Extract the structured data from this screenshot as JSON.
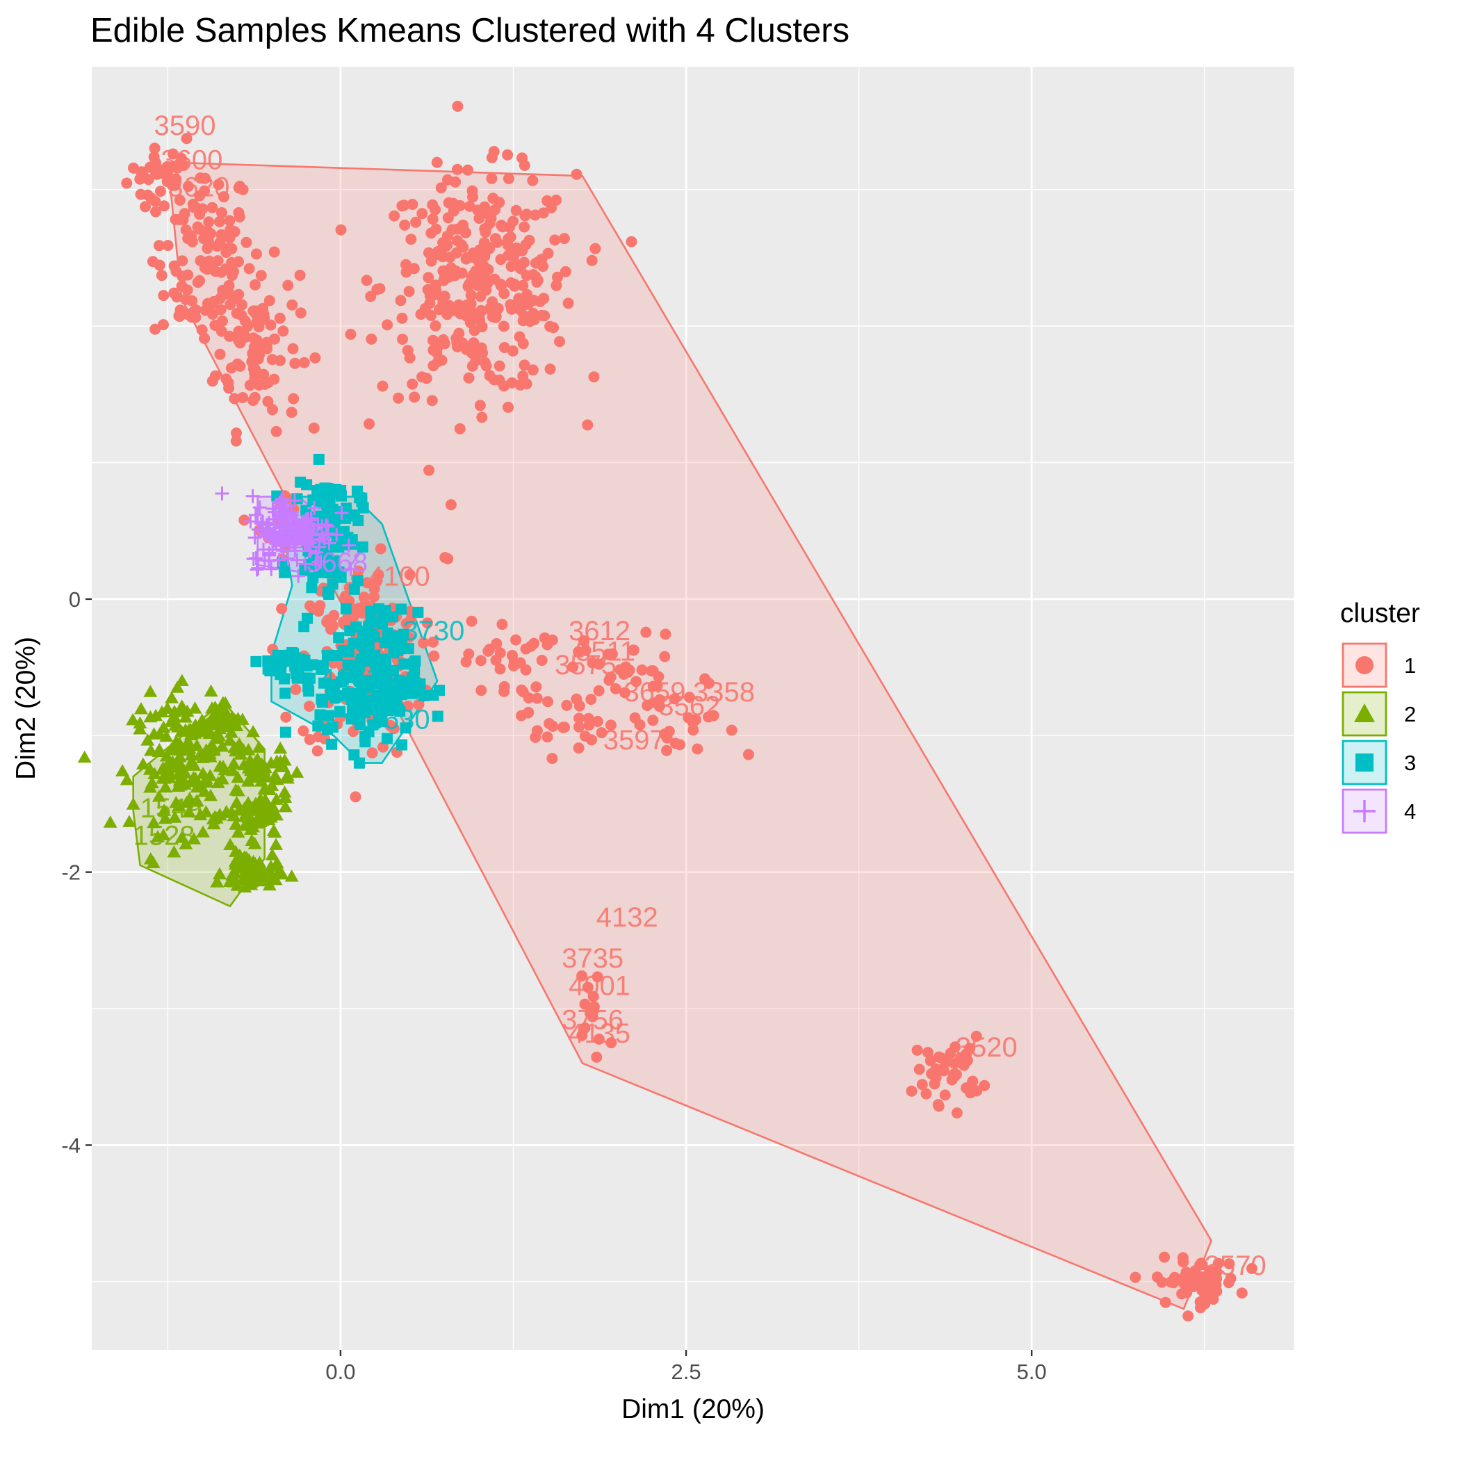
{
  "chart_data": {
    "type": "scatter",
    "title": "Edible Samples Kmeans Clustered with 4 Clusters",
    "xlabel": "Dim1 (20%)",
    "ylabel": "Dim2 (20%)",
    "xlim": [
      -1.8,
      6.9
    ],
    "ylim": [
      -5.5,
      3.9
    ],
    "x_ticks": [
      0.0,
      2.5,
      5.0
    ],
    "x_tick_labels": [
      "0.0",
      "2.5",
      "5.0"
    ],
    "y_ticks": [
      0,
      -2,
      -4
    ],
    "y_tick_labels": [
      "0",
      "-2",
      "-4"
    ],
    "grid": true,
    "panel_background": "#ebebeb",
    "legend": {
      "title": "cluster",
      "position": "right",
      "entries": [
        {
          "label": "1",
          "color": "#F8766D",
          "shape": "circle"
        },
        {
          "label": "2",
          "color": "#7CAE00",
          "shape": "triangle"
        },
        {
          "label": "3",
          "color": "#00BFC4",
          "shape": "square"
        },
        {
          "label": "4",
          "color": "#C77CFF",
          "shape": "cross"
        }
      ]
    },
    "hulls": [
      {
        "cluster": "1",
        "points": [
          [
            -1.25,
            3.2
          ],
          [
            1.75,
            3.1
          ],
          [
            6.3,
            -4.7
          ],
          [
            6.1,
            -5.2
          ],
          [
            1.75,
            -3.4
          ],
          [
            -1.15,
            2.2
          ]
        ]
      },
      {
        "cluster": "2",
        "points": [
          [
            -1.5,
            -1.3
          ],
          [
            -0.85,
            -0.75
          ],
          [
            -0.55,
            -1.1
          ],
          [
            -0.55,
            -1.9
          ],
          [
            -0.8,
            -2.25
          ],
          [
            -1.45,
            -1.95
          ],
          [
            -1.5,
            -1.55
          ]
        ]
      },
      {
        "cluster": "3",
        "points": [
          [
            -0.45,
            0.75
          ],
          [
            0.1,
            0.75
          ],
          [
            0.3,
            0.55
          ],
          [
            0.7,
            -0.6
          ],
          [
            0.3,
            -1.2
          ],
          [
            0.15,
            -1.2
          ],
          [
            -0.05,
            -1.0
          ],
          [
            -0.5,
            -0.75
          ],
          [
            -0.5,
            -0.4
          ],
          [
            -0.35,
            0.1
          ]
        ]
      },
      {
        "cluster": "4",
        "points": [
          [
            -0.6,
            0.75
          ],
          [
            -0.3,
            0.75
          ],
          [
            0.15,
            0.35
          ],
          [
            0.0,
            0.15
          ],
          [
            -0.6,
            0.25
          ]
        ]
      }
    ],
    "clusters": [
      {
        "cluster": "1",
        "blobs": [
          {
            "x": -1.3,
            "y": 3.1,
            "sx": 0.12,
            "sy": 0.1,
            "n": 30
          },
          {
            "x": -1.0,
            "y": 2.5,
            "sx": 0.18,
            "sy": 0.35,
            "n": 120
          },
          {
            "x": -0.6,
            "y": 1.85,
            "sx": 0.15,
            "sy": 0.3,
            "n": 90
          },
          {
            "x": -0.35,
            "y": 0.55,
            "sx": 0.12,
            "sy": 0.12,
            "n": 20
          },
          {
            "x": 1.0,
            "y": 2.3,
            "sx": 0.35,
            "sy": 0.4,
            "n": 320
          },
          {
            "x": 0.75,
            "y": 0.3,
            "sx": 0.02,
            "sy": 0.02,
            "n": 2
          },
          {
            "x": 0.15,
            "y": -0.45,
            "sx": 0.22,
            "sy": 0.35,
            "n": 200
          },
          {
            "x": 1.2,
            "y": -0.45,
            "sx": 0.15,
            "sy": 0.15,
            "n": 30
          },
          {
            "x": 1.6,
            "y": -0.9,
            "sx": 0.15,
            "sy": 0.12,
            "n": 25
          },
          {
            "x": 2.0,
            "y": -0.5,
            "sx": 0.25,
            "sy": 0.12,
            "n": 30
          },
          {
            "x": 2.45,
            "y": -0.95,
            "sx": 0.22,
            "sy": 0.2,
            "n": 30
          },
          {
            "x": 1.85,
            "y": -3.0,
            "sx": 0.1,
            "sy": 0.22,
            "n": 14
          },
          {
            "x": 4.4,
            "y": -3.45,
            "sx": 0.12,
            "sy": 0.12,
            "n": 40
          },
          {
            "x": 6.2,
            "y": -5.0,
            "sx": 0.15,
            "sy": 0.08,
            "n": 60
          }
        ]
      },
      {
        "cluster": "2",
        "blobs": [
          {
            "x": -1.1,
            "y": -1.2,
            "sx": 0.2,
            "sy": 0.25,
            "n": 180
          },
          {
            "x": -0.85,
            "y": -0.9,
            "sx": 0.08,
            "sy": 0.1,
            "n": 30
          },
          {
            "x": -0.55,
            "y": -1.25,
            "sx": 0.1,
            "sy": 0.06,
            "n": 40
          },
          {
            "x": -0.6,
            "y": -1.6,
            "sx": 0.12,
            "sy": 0.08,
            "n": 60
          },
          {
            "x": -0.65,
            "y": -2.0,
            "sx": 0.1,
            "sy": 0.08,
            "n": 60
          }
        ]
      },
      {
        "cluster": "3",
        "blobs": [
          {
            "x": -0.1,
            "y": 0.5,
            "sx": 0.12,
            "sy": 0.2,
            "n": 120
          },
          {
            "x": 0.2,
            "y": -0.6,
            "sx": 0.18,
            "sy": 0.25,
            "n": 180
          },
          {
            "x": -0.35,
            "y": -0.5,
            "sx": 0.1,
            "sy": 0.08,
            "n": 30
          }
        ]
      },
      {
        "cluster": "4",
        "blobs": [
          {
            "x": -0.35,
            "y": 0.5,
            "sx": 0.15,
            "sy": 0.13,
            "n": 160
          }
        ]
      }
    ],
    "annotations": {
      "cluster_1": [
        "3590",
        "3612",
        "3511",
        "3575",
        "3659",
        "3358",
        "3562",
        "3597",
        "4132",
        "3735",
        "4001",
        "3756",
        "4135",
        "3520",
        "3570"
      ],
      "cluster_2": [
        "1528",
        "1549"
      ],
      "cluster_3": [
        "3730",
        "4162",
        "3630"
      ],
      "cluster_4": [
        "3668"
      ]
    },
    "labels": [
      {
        "t": "3590",
        "x": -1.35,
        "y": 3.4,
        "c": "1"
      },
      {
        "t": "3600",
        "x": -1.3,
        "y": 3.15,
        "c": "1"
      },
      {
        "t": "3620",
        "x": -1.25,
        "y": 2.95,
        "c": "1"
      },
      {
        "t": "3612",
        "x": 1.65,
        "y": -0.3,
        "c": "1"
      },
      {
        "t": "3511",
        "x": 1.7,
        "y": -0.45,
        "c": "1"
      },
      {
        "t": "3575",
        "x": 1.55,
        "y": -0.55,
        "c": "1"
      },
      {
        "t": "3659",
        "x": 2.05,
        "y": -0.75,
        "c": "1"
      },
      {
        "t": "3358",
        "x": 2.55,
        "y": -0.75,
        "c": "1"
      },
      {
        "t": "3562",
        "x": 2.3,
        "y": -0.85,
        "c": "1"
      },
      {
        "t": "3597",
        "x": 1.9,
        "y": -1.1,
        "c": "1"
      },
      {
        "t": "4132",
        "x": 1.85,
        "y": -2.4,
        "c": "1"
      },
      {
        "t": "3735",
        "x": 1.6,
        "y": -2.7,
        "c": "1"
      },
      {
        "t": "4001",
        "x": 1.65,
        "y": -2.9,
        "c": "1"
      },
      {
        "t": "3756",
        "x": 1.6,
        "y": -3.15,
        "c": "1"
      },
      {
        "t": "4135",
        "x": 1.65,
        "y": -3.25,
        "c": "1"
      },
      {
        "t": "3520",
        "x": 4.45,
        "y": -3.35,
        "c": "1"
      },
      {
        "t": "3570",
        "x": 6.25,
        "y": -4.95,
        "c": "1"
      },
      {
        "t": "4100",
        "x": 0.2,
        "y": 0.1,
        "c": "1"
      },
      {
        "t": "1528",
        "x": -1.5,
        "y": -1.8,
        "c": "2"
      },
      {
        "t": "1549",
        "x": -1.45,
        "y": -1.6,
        "c": "2"
      },
      {
        "t": "3730",
        "x": 0.45,
        "y": -0.3,
        "c": "3"
      },
      {
        "t": "4162",
        "x": -0.15,
        "y": -0.65,
        "c": "3"
      },
      {
        "t": "3630",
        "x": 0.2,
        "y": -0.95,
        "c": "3"
      },
      {
        "t": "3668",
        "x": -0.25,
        "y": 0.2,
        "c": "4"
      }
    ]
  }
}
